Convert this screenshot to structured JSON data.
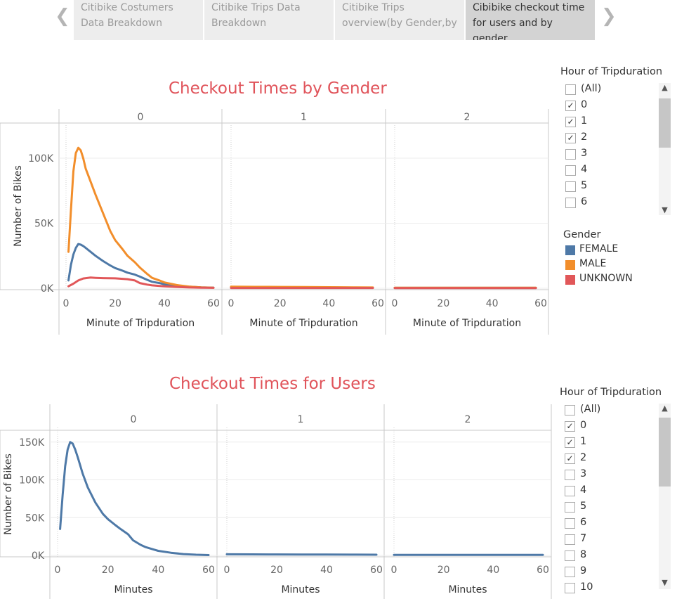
{
  "tabs": [
    {
      "line1": "Citibike Costumers",
      "line2": "Data Breakdown"
    },
    {
      "line1": "Citibike  Trips Data",
      "line2": "Breakdown"
    },
    {
      "line1": "Citibike Trips",
      "line2": "overview(by Gender,by"
    },
    {
      "line1": "Cibibike checkout time",
      "line2": "for users and by gender"
    }
  ],
  "nav": {
    "prev_icon": "chevron-left-icon",
    "next_icon": "chevron-right-icon"
  },
  "colors": {
    "female": "#4e79a7",
    "male": "#f28e2b",
    "unknown": "#e15759",
    "title": "#e0535a",
    "users": "#4e79a7"
  },
  "chart_data": [
    {
      "type": "line",
      "title": "Checkout Times by Gender",
      "xlabel": "Minute of Tripduration",
      "ylabel": "Number of Bikes",
      "facet_header": "",
      "panels": [
        "0",
        "1",
        "2"
      ],
      "xlim": [
        0,
        60
      ],
      "ylim": [
        0,
        120000
      ],
      "x_ticks": [
        "0",
        "20",
        "40",
        "60"
      ],
      "y_ticks": [
        {
          "value": 0,
          "label": "0K"
        },
        {
          "value": 50000,
          "label": "50K"
        },
        {
          "value": 100000,
          "label": "100K"
        }
      ],
      "series": [
        {
          "name": "FEMALE",
          "color": "#4e79a7",
          "panels": [
            {
              "x": [
                1,
                2,
                3,
                4,
                5,
                6,
                7,
                8,
                10,
                12,
                15,
                18,
                20,
                23,
                25,
                28,
                30,
                33,
                35,
                38,
                40,
                45,
                50,
                55,
                60
              ],
              "y": [
                6000,
                18000,
                26000,
                31000,
                34000,
                33500,
                32500,
                31000,
                28000,
                25000,
                21000,
                17500,
                15500,
                13500,
                12000,
                10500,
                9000,
                6500,
                5000,
                4000,
                3000,
                2000,
                1200,
                700,
                500
              ]
            },
            {
              "x": [
                0,
                10,
                20,
                30,
                40,
                50,
                58
              ],
              "y": [
                800,
                750,
                700,
                650,
                600,
                550,
                500
              ]
            },
            {
              "x": [
                0,
                10,
                20,
                30,
                40,
                50,
                58
              ],
              "y": [
                300,
                300,
                300,
                300,
                300,
                300,
                300
              ]
            }
          ]
        },
        {
          "name": "MALE",
          "color": "#f28e2b",
          "panels": [
            {
              "x": [
                1,
                2,
                3,
                4,
                5,
                6,
                7,
                8,
                10,
                12,
                15,
                18,
                20,
                23,
                25,
                28,
                30,
                33,
                35,
                38,
                40,
                45,
                50,
                55,
                60
              ],
              "y": [
                28000,
                60000,
                90000,
                104000,
                108000,
                106000,
                100000,
                92000,
                82000,
                72000,
                58000,
                44000,
                37000,
                30000,
                25000,
                20000,
                16000,
                11000,
                8000,
                6000,
                4500,
                2500,
                1300,
                700,
                400
              ]
            },
            {
              "x": [
                0,
                10,
                20,
                30,
                40,
                50,
                58
              ],
              "y": [
                1200,
                1100,
                1000,
                900,
                800,
                700,
                600
              ]
            },
            {
              "x": [
                0,
                10,
                20,
                30,
                40,
                50,
                58
              ],
              "y": [
                400,
                400,
                400,
                400,
                400,
                400,
                400
              ]
            }
          ]
        },
        {
          "name": "UNKNOWN",
          "color": "#e15759",
          "panels": [
            {
              "x": [
                1,
                3,
                5,
                7,
                10,
                12,
                15,
                20,
                25,
                28,
                30,
                33,
                35,
                40,
                45,
                50,
                55,
                60
              ],
              "y": [
                1500,
                3500,
                6000,
                7500,
                8200,
                8000,
                7800,
                7600,
                7000,
                6000,
                4000,
                2800,
                2200,
                1500,
                1000,
                600,
                400,
                300
              ]
            },
            {
              "x": [
                0,
                10,
                20,
                30,
                40,
                50,
                58
              ],
              "y": [
                200,
                200,
                200,
                200,
                200,
                200,
                200
              ]
            },
            {
              "x": [
                0,
                10,
                20,
                30,
                40,
                50,
                58
              ],
              "y": [
                100,
                100,
                100,
                100,
                100,
                100,
                100
              ]
            }
          ]
        }
      ]
    },
    {
      "type": "line",
      "title": "Checkout Times for Users",
      "xlabel": "Minutes",
      "ylabel": "Number of Bikes",
      "facet_header": "",
      "panels": [
        "0",
        "1",
        "2"
      ],
      "xlim": [
        0,
        60
      ],
      "ylim": [
        0,
        160000
      ],
      "x_ticks": [
        "0",
        "20",
        "40",
        "60"
      ],
      "y_ticks": [
        {
          "value": 0,
          "label": "0K"
        },
        {
          "value": 50000,
          "label": "50K"
        },
        {
          "value": 100000,
          "label": "100K"
        },
        {
          "value": 150000,
          "label": "150K"
        }
      ],
      "series": [
        {
          "name": "Users",
          "color": "#4e79a7",
          "panels": [
            {
              "x": [
                1,
                2,
                3,
                4,
                5,
                6,
                7,
                8,
                10,
                12,
                15,
                18,
                20,
                23,
                25,
                28,
                30,
                33,
                35,
                38,
                40,
                45,
                50,
                55,
                60
              ],
              "y": [
                35000,
                80000,
                118000,
                140000,
                150000,
                148000,
                140000,
                130000,
                108000,
                90000,
                70000,
                55000,
                48000,
                40000,
                35000,
                28000,
                20000,
                14000,
                11000,
                8000,
                6000,
                3500,
                1800,
                900,
                500
              ]
            },
            {
              "x": [
                0,
                10,
                20,
                30,
                40,
                50,
                60
              ],
              "y": [
                1500,
                1400,
                1300,
                1200,
                1100,
                1000,
                900
              ]
            },
            {
              "x": [
                0,
                10,
                20,
                30,
                40,
                50,
                60
              ],
              "y": [
                700,
                700,
                700,
                700,
                700,
                700,
                700
              ]
            }
          ]
        }
      ]
    }
  ],
  "filter1": {
    "title": "Hour of Tripduration",
    "items": [
      {
        "label": "(All)",
        "checked": false
      },
      {
        "label": "0",
        "checked": true
      },
      {
        "label": "1",
        "checked": true
      },
      {
        "label": "2",
        "checked": true
      },
      {
        "label": "3",
        "checked": false
      },
      {
        "label": "4",
        "checked": false
      },
      {
        "label": "5",
        "checked": false
      },
      {
        "label": "6",
        "checked": false
      }
    ]
  },
  "legend": {
    "title": "Gender",
    "items": [
      {
        "label": "FEMALE",
        "color": "#4e79a7"
      },
      {
        "label": "MALE",
        "color": "#f28e2b"
      },
      {
        "label": "UNKNOWN",
        "color": "#e15759"
      }
    ]
  },
  "filter2": {
    "title": "Hour of Tripduration",
    "items": [
      {
        "label": "(All)",
        "checked": false
      },
      {
        "label": "0",
        "checked": true
      },
      {
        "label": "1",
        "checked": true
      },
      {
        "label": "2",
        "checked": true
      },
      {
        "label": "3",
        "checked": false
      },
      {
        "label": "4",
        "checked": false
      },
      {
        "label": "5",
        "checked": false
      },
      {
        "label": "6",
        "checked": false
      },
      {
        "label": "7",
        "checked": false
      },
      {
        "label": "8",
        "checked": false
      },
      {
        "label": "9",
        "checked": false
      },
      {
        "label": "10",
        "checked": false
      }
    ]
  },
  "scroll_icons": {
    "up": "chevron-up-icon",
    "down": "chevron-down-icon"
  }
}
